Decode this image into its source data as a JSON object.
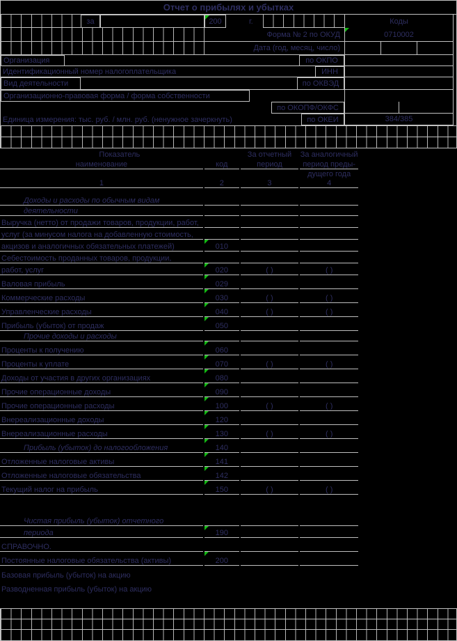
{
  "title": "Отчет о прибылях и убытках",
  "header": {
    "za_label": "за",
    "year_value": "200",
    "year_suffix": "г.",
    "kody_label": "Коды",
    "okud_label": "Форма № 2 по ОКУД",
    "okud_value": "0710002",
    "date_label": "Дата (год, месяц, число)",
    "org_label": "Организация",
    "okpo_label": "по ОКПО",
    "inn_line_label": "Идентификационный номер налогоплательщика",
    "inn_label": "ИНН",
    "activity_label": "Вид деятельности",
    "okved_label": "по ОКВЭД",
    "legal_form_label": "Организационно-правовая форма / форма собственности",
    "okopf_label": "по ОКОПФ/ОКФС",
    "unit_label": "Единица измерения: тыс. руб. / млн. руб. (ненужное зачеркнуть)",
    "okei_label": "по ОКЕИ",
    "okei_value": "384/385"
  },
  "table": {
    "header": {
      "col1_top": "Показатель",
      "col1_sub": "наименование",
      "col2_sub": "код",
      "col3_line1": "За отчетный",
      "col3_line2": "период",
      "col4_line1": "За аналогичный",
      "col4_line2": "период преды-",
      "col4_line3": "дущего года",
      "numbers": [
        "1",
        "2",
        "3",
        "4"
      ]
    },
    "rows": [
      {
        "lines": [
          "Доходы и расходы по обычным видам",
          "деятельности"
        ],
        "code": "",
        "v3": "",
        "v4": "",
        "style": "section"
      },
      {
        "lines": [
          "Выручка (нетто) от продажи товаров, продукции, работ,",
          "услуг (за минусом налога на добавленную стоимость,",
          "акцизов и аналогичных обязательных платежей)"
        ],
        "code": "010",
        "v3": "",
        "v4": "",
        "style": ""
      },
      {
        "lines": [
          "Себестоимость проданных товаров, продукции,",
          "работ, услуг"
        ],
        "code": "020",
        "v3": "( )",
        "v4": "( )",
        "style": ""
      },
      {
        "lines": [
          "Валовая прибыль"
        ],
        "code": "029",
        "v3": "",
        "v4": "",
        "style": ""
      },
      {
        "lines": [
          "Коммерческие расходы"
        ],
        "code": "030",
        "v3": "( )",
        "v4": "( )",
        "style": ""
      },
      {
        "lines": [
          "Управленческие расходы"
        ],
        "code": "040",
        "v3": "( )",
        "v4": "( )",
        "style": ""
      },
      {
        "lines": [
          "Прибыль (убыток) от продаж"
        ],
        "code": "050",
        "v3": "",
        "v4": "",
        "style": ""
      },
      {
        "lines": [
          "Прочие доходы и расходы"
        ],
        "code": "",
        "v3": "",
        "v4": "",
        "style": "section"
      },
      {
        "lines": [
          "Проценты к получению"
        ],
        "code": "060",
        "v3": "",
        "v4": "",
        "style": ""
      },
      {
        "lines": [
          "Проценты к уплате"
        ],
        "code": "070",
        "v3": "( )",
        "v4": "( )",
        "style": ""
      },
      {
        "lines": [
          "Доходы от участия в других организациях"
        ],
        "code": "080",
        "v3": "",
        "v4": "",
        "style": ""
      },
      {
        "lines": [
          "Прочие операционные доходы"
        ],
        "code": "090",
        "v3": "",
        "v4": "",
        "style": ""
      },
      {
        "lines": [
          "Прочие операционные расходы"
        ],
        "code": "100",
        "v3": "( )",
        "v4": "( )",
        "style": ""
      },
      {
        "lines": [
          "Внереализационные доходы"
        ],
        "code": "120",
        "v3": "",
        "v4": "",
        "style": ""
      },
      {
        "lines": [
          "Внереализационные расходы"
        ],
        "code": "130",
        "v3": "( )",
        "v4": "( )",
        "style": ""
      },
      {
        "lines": [
          "Прибыль (убыток) до налогообложения"
        ],
        "code": "140",
        "v3": "",
        "v4": "",
        "style": "summary"
      },
      {
        "lines": [
          "Отложенные налоговые активы"
        ],
        "code": "141",
        "v3": "",
        "v4": "",
        "style": ""
      },
      {
        "lines": [
          "Отложенные налоговые обязательства"
        ],
        "code": "142",
        "v3": "",
        "v4": "",
        "style": ""
      },
      {
        "lines": [
          "Текущий налог на прибыль"
        ],
        "code": "150",
        "v3": "( )",
        "v4": "( )",
        "style": ""
      },
      {
        "lines": [
          ""
        ],
        "code": "",
        "v3": "",
        "v4": "",
        "style": "spacer"
      },
      {
        "lines": [
          "Чистая прибыль (убыток) отчетного",
          "периода"
        ],
        "code": "190",
        "v3": "",
        "v4": "",
        "style": "summary"
      },
      {
        "lines": [
          "СПРАВОЧНО."
        ],
        "code": "",
        "v3": "",
        "v4": "",
        "style": ""
      },
      {
        "lines": [
          "Постоянные налоговые обязательства (активы)"
        ],
        "code": "200",
        "v3": "",
        "v4": "",
        "style": ""
      },
      {
        "lines": [
          "Базовая прибыль (убыток) на акцию"
        ],
        "code": "",
        "v3": "",
        "v4": "",
        "style": "plainend"
      },
      {
        "lines": [
          "Разводненная прибыль (убыток) на акцию"
        ],
        "code": "",
        "v3": "",
        "v4": "",
        "style": "plainend"
      }
    ]
  },
  "colors": {
    "background": "#000000",
    "grid_line": "#c2c2c2",
    "text": "#2e2e60",
    "marker_green": "#14b814"
  }
}
